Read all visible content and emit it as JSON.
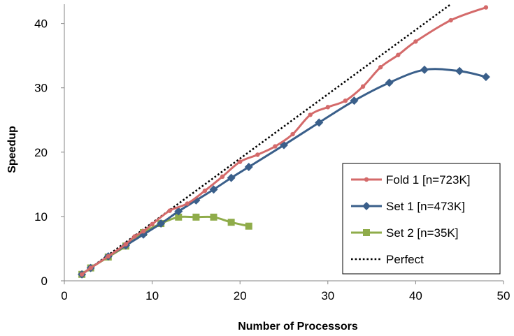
{
  "chart_data": {
    "type": "line",
    "title": "",
    "xlabel": "Number of Processors",
    "ylabel": "Speedup",
    "xlim": [
      0,
      50
    ],
    "ylim": [
      0,
      43
    ],
    "xticks": [
      0,
      10,
      20,
      30,
      40,
      50
    ],
    "yticks": [
      0,
      10,
      20,
      30,
      40
    ],
    "grid": false,
    "legend_position": "bottom-right",
    "series": [
      {
        "name": "Fold 1 [n=723K]",
        "color": "#d46a6a",
        "marker": "circle",
        "x": [
          2,
          3,
          5,
          7,
          8,
          9,
          10,
          12,
          14,
          16,
          18,
          20,
          22,
          24,
          26,
          28,
          30,
          32,
          34,
          36,
          38,
          40,
          44,
          48
        ],
        "y": [
          1.0,
          2.0,
          3.8,
          5.7,
          6.9,
          7.7,
          8.8,
          10.9,
          12.0,
          14.0,
          16.2,
          18.5,
          19.6,
          20.9,
          22.8,
          25.8,
          27.0,
          28.0,
          30.2,
          33.2,
          35.1,
          37.2,
          40.5,
          42.5
        ]
      },
      {
        "name": "Set 1 [n=473K]",
        "color": "#3a5f8a",
        "marker": "diamond",
        "x": [
          2,
          3,
          5,
          7,
          9,
          11,
          13,
          15,
          17,
          19,
          21,
          25,
          29,
          33,
          37,
          41,
          45,
          48
        ],
        "y": [
          1.0,
          2.0,
          3.8,
          5.5,
          7.2,
          8.9,
          10.8,
          12.5,
          14.2,
          16.0,
          17.7,
          21.1,
          24.6,
          28.0,
          30.8,
          32.8,
          32.6,
          31.7
        ]
      },
      {
        "name": "Set 2 [n=35K]",
        "color": "#8fac4a",
        "marker": "square",
        "x": [
          2,
          3,
          5,
          7,
          9,
          11,
          13,
          15,
          17,
          19,
          21
        ],
        "y": [
          1.0,
          2.0,
          3.7,
          5.4,
          7.5,
          8.9,
          9.9,
          9.9,
          9.9,
          9.1,
          8.5
        ]
      },
      {
        "name": "Perfect",
        "color": "#000000",
        "marker": "none",
        "dash": "dotted",
        "x": [
          2,
          44
        ],
        "y": [
          1,
          43
        ]
      }
    ]
  }
}
